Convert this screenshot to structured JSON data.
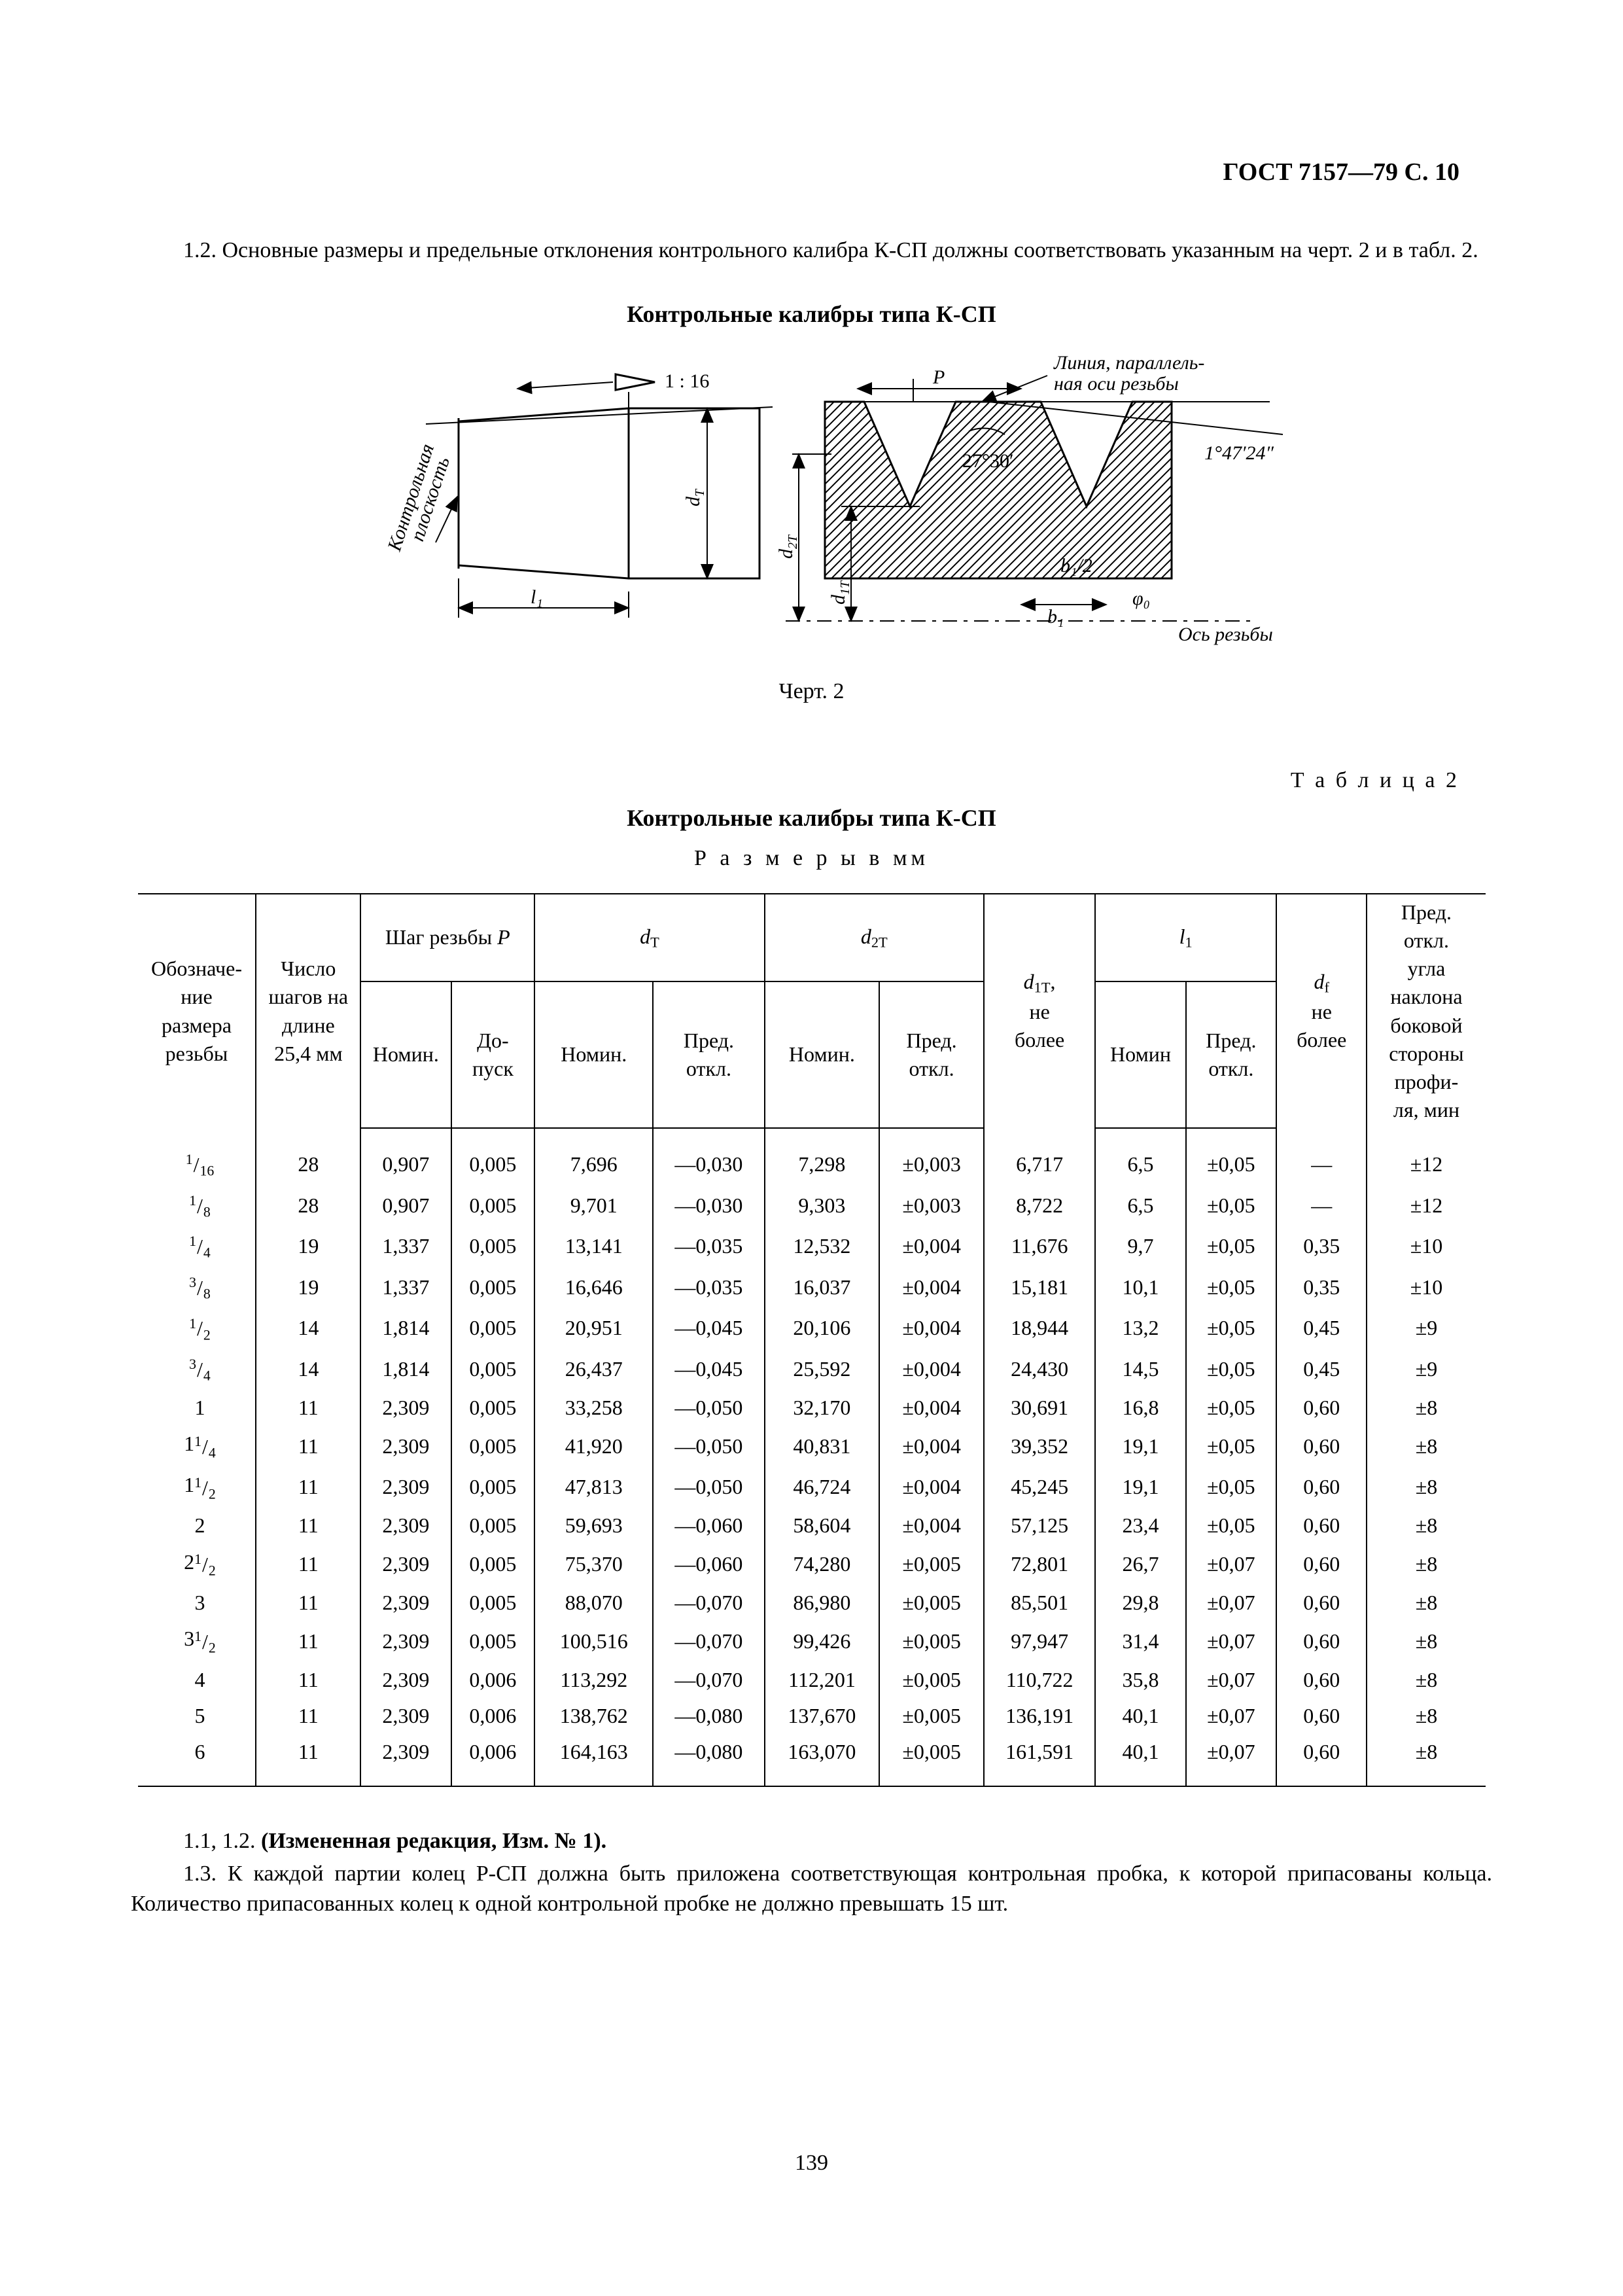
{
  "header": {
    "doc_code": "ГОСТ 7157—79 С. 10"
  },
  "para_1_2": "1.2. Основные размеры и предельные отклонения контрольного калибра К-СП должны соответствовать указанным на черт. 2 и в табл. 2.",
  "figure": {
    "title": "Контрольные калибры типа К-СП",
    "caption": "Черт. 2",
    "labels": {
      "taper": "1 : 16",
      "plane1": "Контрольная",
      "plane2": "плоскость",
      "parallel1": "Линия, параллель-",
      "parallel2": "ная оси резьбы",
      "angle": "1°47′24″",
      "half_angle": "27°30′",
      "P": "P",
      "l1": "l₁",
      "dT": "d",
      "dT_sub": "T",
      "d2T": "d",
      "d2T_sub": "2T",
      "d1T": "d",
      "d1T_sub": "1T",
      "b1": "b₁",
      "b12": "b₁/2",
      "phi0": "φ₀",
      "axis": "Ось резьбы"
    }
  },
  "table": {
    "label": "Т а б л и ц а  2",
    "title": "Контрольные калибры типа К-СП",
    "subtitle": "Р а з м е р ы  в  мм",
    "head": {
      "c1a": "Обозначе-",
      "c1b": "ние",
      "c1c": "размера",
      "c1d": "резьбы",
      "c2a": "Число",
      "c2b": "шагов на",
      "c2c": "длине",
      "c2d": "25,4 мм",
      "gP": "Шаг резьбы ",
      "gP_i": "P",
      "c3": "Номин.",
      "c4a": "До-",
      "c4b": "пуск",
      "gdT_i": "d",
      "gdT_sub": "T",
      "c5": "Номин.",
      "c6a": "Пред.",
      "c6b": "откл.",
      "gd2T_i": "d",
      "gd2T_sub": "2T",
      "c7": "Номин.",
      "c8a": "Пред.",
      "c8b": "откл.",
      "c9_i": "d",
      "c9_sub": "1T",
      "c9_suf": ",",
      "c9b": "не",
      "c9c": "более",
      "gl1_i": "l",
      "gl1_sub": "1",
      "c10": "Номин",
      "c11a": "Пред.",
      "c11b": "откл.",
      "c12_i": "d",
      "c12_sub": "f",
      "c12b": "не",
      "c12c": "более",
      "c13a": "Пред.",
      "c13b": "откл.",
      "c13c": "угла",
      "c13d": "наклона",
      "c13e": "боковой",
      "c13f": "стороны",
      "c13g": "профи-",
      "c13h": "ля, мин"
    },
    "rows": [
      {
        "sz_n": "1",
        "sz_d": "16",
        "sz_whole": "",
        "tpi": "28",
        "Pn": "0,907",
        "Pt": "0,005",
        "dTn": "7,696",
        "dTo": "—0,030",
        "d2Tn": "7,298",
        "d2To": "±0,003",
        "d1T": "6,717",
        "l1n": "6,5",
        "l1o": "±0,05",
        "df": "—",
        "ang": "±12"
      },
      {
        "sz_n": "1",
        "sz_d": "8",
        "sz_whole": "",
        "tpi": "28",
        "Pn": "0,907",
        "Pt": "0,005",
        "dTn": "9,701",
        "dTo": "—0,030",
        "d2Tn": "9,303",
        "d2To": "±0,003",
        "d1T": "8,722",
        "l1n": "6,5",
        "l1o": "±0,05",
        "df": "—",
        "ang": "±12"
      },
      {
        "sz_n": "1",
        "sz_d": "4",
        "sz_whole": "",
        "tpi": "19",
        "Pn": "1,337",
        "Pt": "0,005",
        "dTn": "13,141",
        "dTo": "—0,035",
        "d2Tn": "12,532",
        "d2To": "±0,004",
        "d1T": "11,676",
        "l1n": "9,7",
        "l1o": "±0,05",
        "df": "0,35",
        "ang": "±10"
      },
      {
        "sz_n": "3",
        "sz_d": "8",
        "sz_whole": "",
        "tpi": "19",
        "Pn": "1,337",
        "Pt": "0,005",
        "dTn": "16,646",
        "dTo": "—0,035",
        "d2Tn": "16,037",
        "d2To": "±0,004",
        "d1T": "15,181",
        "l1n": "10,1",
        "l1o": "±0,05",
        "df": "0,35",
        "ang": "±10"
      },
      {
        "sz_n": "1",
        "sz_d": "2",
        "sz_whole": "",
        "tpi": "14",
        "Pn": "1,814",
        "Pt": "0,005",
        "dTn": "20,951",
        "dTo": "—0,045",
        "d2Tn": "20,106",
        "d2To": "±0,004",
        "d1T": "18,944",
        "l1n": "13,2",
        "l1o": "±0,05",
        "df": "0,45",
        "ang": "±9"
      },
      {
        "sz_n": "3",
        "sz_d": "4",
        "sz_whole": "",
        "tpi": "14",
        "Pn": "1,814",
        "Pt": "0,005",
        "dTn": "26,437",
        "dTo": "—0,045",
        "d2Tn": "25,592",
        "d2To": "±0,004",
        "d1T": "24,430",
        "l1n": "14,5",
        "l1o": "±0,05",
        "df": "0,45",
        "ang": "±9"
      },
      {
        "sz_whole": "1",
        "sz_n": "",
        "sz_d": "",
        "tpi": "11",
        "Pn": "2,309",
        "Pt": "0,005",
        "dTn": "33,258",
        "dTo": "—0,050",
        "d2Tn": "32,170",
        "d2To": "±0,004",
        "d1T": "30,691",
        "l1n": "16,8",
        "l1o": "±0,05",
        "df": "0,60",
        "ang": "±8"
      },
      {
        "sz_whole": "1",
        "sz_n": "1",
        "sz_d": "4",
        "tpi": "11",
        "Pn": "2,309",
        "Pt": "0,005",
        "dTn": "41,920",
        "dTo": "—0,050",
        "d2Tn": "40,831",
        "d2To": "±0,004",
        "d1T": "39,352",
        "l1n": "19,1",
        "l1o": "±0,05",
        "df": "0,60",
        "ang": "±8"
      },
      {
        "sz_whole": "1",
        "sz_n": "1",
        "sz_d": "2",
        "tpi": "11",
        "Pn": "2,309",
        "Pt": "0,005",
        "dTn": "47,813",
        "dTo": "—0,050",
        "d2Tn": "46,724",
        "d2To": "±0,004",
        "d1T": "45,245",
        "l1n": "19,1",
        "l1o": "±0,05",
        "df": "0,60",
        "ang": "±8"
      },
      {
        "sz_whole": "2",
        "sz_n": "",
        "sz_d": "",
        "tpi": "11",
        "Pn": "2,309",
        "Pt": "0,005",
        "dTn": "59,693",
        "dTo": "—0,060",
        "d2Tn": "58,604",
        "d2To": "±0,004",
        "d1T": "57,125",
        "l1n": "23,4",
        "l1o": "±0,05",
        "df": "0,60",
        "ang": "±8"
      },
      {
        "sz_whole": "2",
        "sz_n": "1",
        "sz_d": "2",
        "tpi": "11",
        "Pn": "2,309",
        "Pt": "0,005",
        "dTn": "75,370",
        "dTo": "—0,060",
        "d2Tn": "74,280",
        "d2To": "±0,005",
        "d1T": "72,801",
        "l1n": "26,7",
        "l1o": "±0,07",
        "df": "0,60",
        "ang": "±8"
      },
      {
        "sz_whole": "3",
        "sz_n": "",
        "sz_d": "",
        "tpi": "11",
        "Pn": "2,309",
        "Pt": "0,005",
        "dTn": "88,070",
        "dTo": "—0,070",
        "d2Tn": "86,980",
        "d2To": "±0,005",
        "d1T": "85,501",
        "l1n": "29,8",
        "l1o": "±0,07",
        "df": "0,60",
        "ang": "±8"
      },
      {
        "sz_whole": "3",
        "sz_n": "1",
        "sz_d": "2",
        "tpi": "11",
        "Pn": "2,309",
        "Pt": "0,005",
        "dTn": "100,516",
        "dTo": "—0,070",
        "d2Tn": "99,426",
        "d2To": "±0,005",
        "d1T": "97,947",
        "l1n": "31,4",
        "l1o": "±0,07",
        "df": "0,60",
        "ang": "±8"
      },
      {
        "sz_whole": "4",
        "sz_n": "",
        "sz_d": "",
        "tpi": "11",
        "Pn": "2,309",
        "Pt": "0,006",
        "dTn": "113,292",
        "dTo": "—0,070",
        "d2Tn": "112,201",
        "d2To": "±0,005",
        "d1T": "110,722",
        "l1n": "35,8",
        "l1o": "±0,07",
        "df": "0,60",
        "ang": "±8"
      },
      {
        "sz_whole": "5",
        "sz_n": "",
        "sz_d": "",
        "tpi": "11",
        "Pn": "2,309",
        "Pt": "0,006",
        "dTn": "138,762",
        "dTo": "—0,080",
        "d2Tn": "137,670",
        "d2To": "±0,005",
        "d1T": "136,191",
        "l1n": "40,1",
        "l1o": "±0,07",
        "df": "0,60",
        "ang": "±8"
      },
      {
        "sz_whole": "6",
        "sz_n": "",
        "sz_d": "",
        "tpi": "11",
        "Pn": "2,309",
        "Pt": "0,006",
        "dTn": "164,163",
        "dTo": "—0,080",
        "d2Tn": "163,070",
        "d2To": "±0,005",
        "d1T": "161,591",
        "l1n": "40,1",
        "l1o": "±0,07",
        "df": "0,60",
        "ang": "±8"
      }
    ]
  },
  "notes": {
    "n1": "1.1, 1.2. ",
    "n1b": "(Измененная редакция, Изм. № 1).",
    "n2": "1.3. К каждой партии колец Р-СП должна быть приложена соответствующая контрольная пробка, к которой припасованы кольца. Количество припасованных колец к одной контрольной пробке не должно превышать 15 шт."
  },
  "page_number": "139"
}
